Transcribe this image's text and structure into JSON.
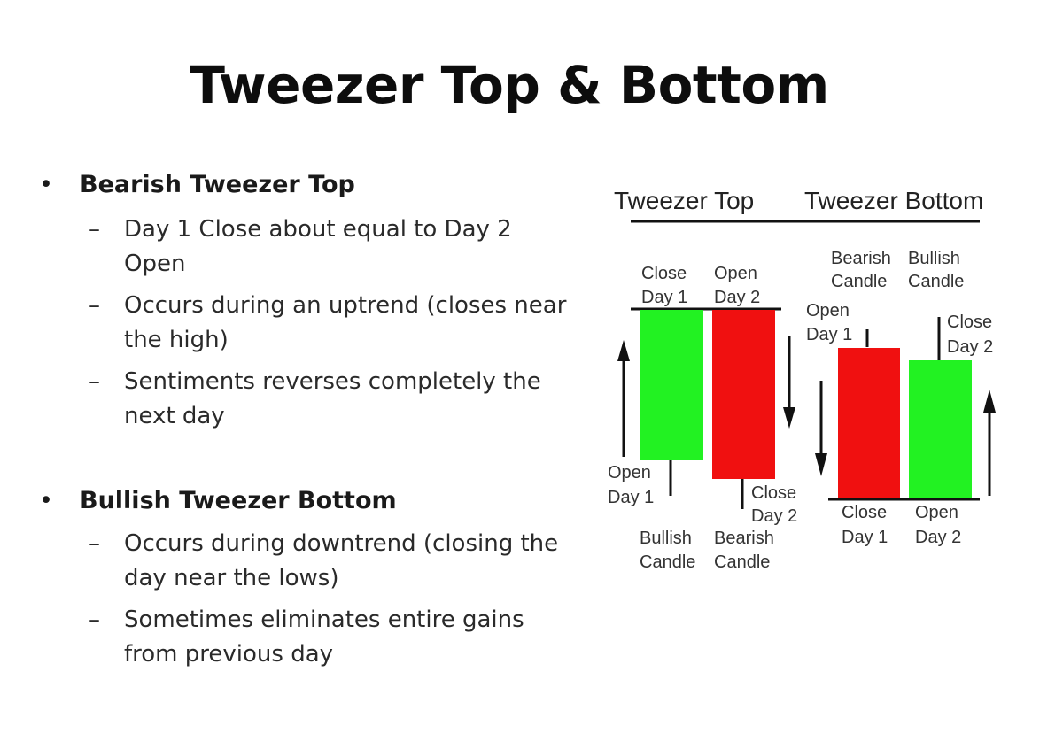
{
  "slide": {
    "title": "Tweezer Top & Bottom"
  },
  "bullets": [
    {
      "label": "Bearish Tweezer Top",
      "subs": [
        "Day 1 Close about equal to Day 2 Open",
        "Occurs during an uptrend (closes near the high)",
        "Sentiments reverses completely the next day"
      ]
    },
    {
      "label": "Bullish Tweezer Bottom",
      "subs": [
        "Occurs during downtrend (closing the day near the lows)",
        "Sometimes eliminates entire gains from previous day"
      ]
    }
  ],
  "diagram": {
    "header_top": "Tweezer Top",
    "header_bottom": "Tweezer Bottom",
    "top": {
      "label_close_day1": [
        "Close",
        "Day 1"
      ],
      "label_open_day2": [
        "Open",
        "Day 2"
      ],
      "label_open_day1": [
        "Open",
        "Day 1"
      ],
      "label_close_day2": [
        "Close",
        "Day 2"
      ],
      "candle1_name": [
        "Bullish",
        "Candle"
      ],
      "candle2_name": [
        "Bearish",
        "Candle"
      ]
    },
    "bottom": {
      "candle1_name": [
        "Bearish",
        "Candle"
      ],
      "candle2_name": [
        "Bullish",
        "Candle"
      ],
      "label_open_day1": [
        "Open",
        "Day 1"
      ],
      "label_close_day2": [
        "Close",
        "Day 2"
      ],
      "label_close_day1": [
        "Close",
        "Day 1"
      ],
      "label_open_day2": [
        "Open",
        "Day 2"
      ]
    },
    "colors": {
      "bullish": "#22f222",
      "bearish": "#f01010",
      "line": "#111111",
      "label": "#333333"
    }
  }
}
